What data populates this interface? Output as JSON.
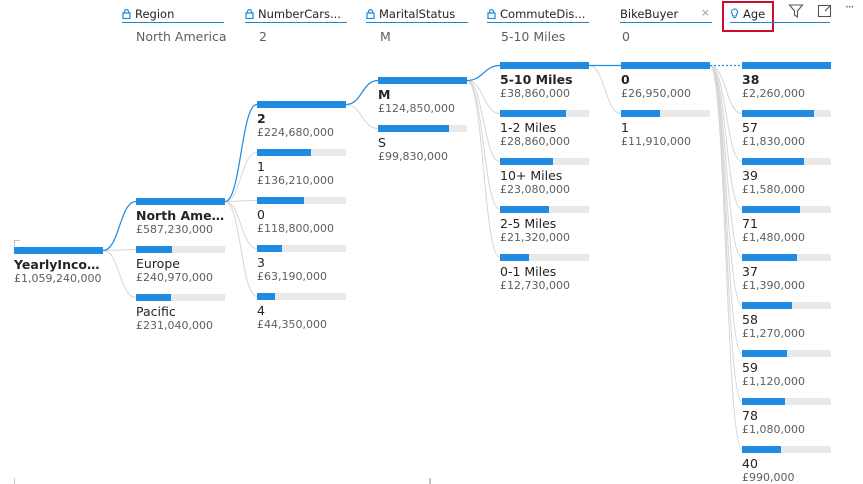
{
  "headers": [
    {
      "name": "Region",
      "value": "North America"
    },
    {
      "name": "NumberCars...",
      "value": "2"
    },
    {
      "name": "MaritalStatus",
      "value": "M"
    },
    {
      "name": "CommuteDis...",
      "value": "5-10 Miles"
    },
    {
      "name": "BikeBuyer",
      "value": "0"
    },
    {
      "name": "Age",
      "value": ""
    }
  ],
  "accent_color": "#1f8be3",
  "highlight_color": "#c8102e",
  "root": {
    "label": "YearlyIncome",
    "value": "£1,059,240,000",
    "fraction": 1.0
  },
  "region": [
    {
      "label": "North Ameri...",
      "value": "£587,230,000",
      "fraction": 1.0
    },
    {
      "label": "Europe",
      "value": "£240,970,000",
      "fraction": 0.41
    },
    {
      "label": "Pacific",
      "value": "£231,040,000",
      "fraction": 0.39
    }
  ],
  "cars": [
    {
      "label": "2",
      "value": "£224,680,000",
      "fraction": 1.0
    },
    {
      "label": "1",
      "value": "£136,210,000",
      "fraction": 0.61
    },
    {
      "label": "0",
      "value": "£118,800,000",
      "fraction": 0.53
    },
    {
      "label": "3",
      "value": "£63,190,000",
      "fraction": 0.28
    },
    {
      "label": "4",
      "value": "£44,350,000",
      "fraction": 0.2
    }
  ],
  "marital": [
    {
      "label": "M",
      "value": "£124,850,000",
      "fraction": 1.0
    },
    {
      "label": "S",
      "value": "£99,830,000",
      "fraction": 0.8
    }
  ],
  "commute": [
    {
      "label": "5-10 Miles",
      "value": "£38,860,000",
      "fraction": 1.0
    },
    {
      "label": "1-2 Miles",
      "value": "£28,860,000",
      "fraction": 0.74
    },
    {
      "label": "10+ Miles",
      "value": "£23,080,000",
      "fraction": 0.59
    },
    {
      "label": "2-5 Miles",
      "value": "£21,320,000",
      "fraction": 0.55
    },
    {
      "label": "0-1 Miles",
      "value": "£12,730,000",
      "fraction": 0.33
    }
  ],
  "bikebuyer": [
    {
      "label": "0",
      "value": "£26,950,000",
      "fraction": 1.0
    },
    {
      "label": "1",
      "value": "£11,910,000",
      "fraction": 0.44
    }
  ],
  "age": [
    {
      "label": "38",
      "value": "£2,260,000",
      "fraction": 1.0
    },
    {
      "label": "57",
      "value": "£1,830,000",
      "fraction": 0.81
    },
    {
      "label": "39",
      "value": "£1,580,000",
      "fraction": 0.7
    },
    {
      "label": "71",
      "value": "£1,480,000",
      "fraction": 0.65
    },
    {
      "label": "37",
      "value": "£1,390,000",
      "fraction": 0.62
    },
    {
      "label": "58",
      "value": "£1,270,000",
      "fraction": 0.56
    },
    {
      "label": "59",
      "value": "£1,120,000",
      "fraction": 0.5
    },
    {
      "label": "78",
      "value": "£1,080,000",
      "fraction": 0.48
    },
    {
      "label": "40",
      "value": "£990,000",
      "fraction": 0.44
    }
  ]
}
